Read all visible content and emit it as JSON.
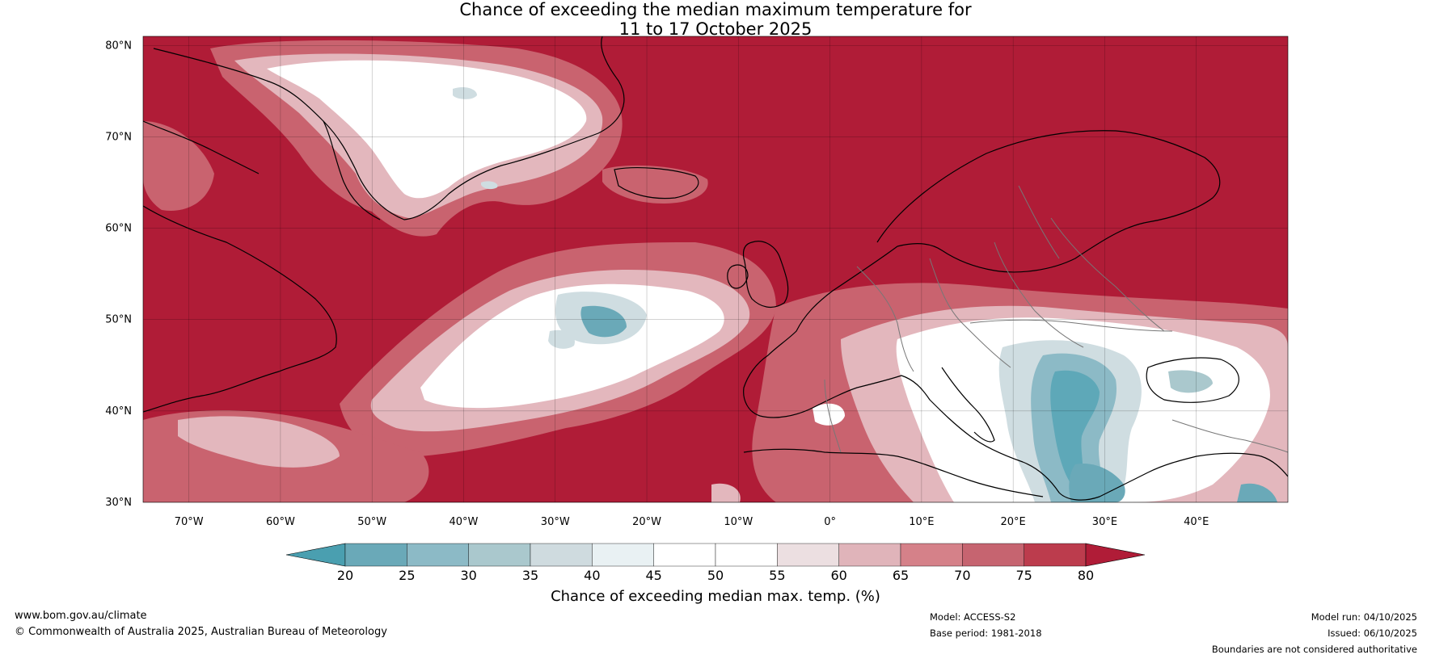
{
  "title": {
    "line1": "Chance of exceeding the median maximum temperature for",
    "line2": "11 to 17 October 2025"
  },
  "map": {
    "lat_labels": [
      "80°N",
      "70°N",
      "60°N",
      "50°N",
      "40°N",
      "30°N"
    ],
    "lon_labels": [
      "70°W",
      "60°W",
      "50°W",
      "40°W",
      "30°W",
      "20°W",
      "10°W",
      "0°",
      "10°E",
      "20°E",
      "30°E",
      "40°E"
    ],
    "lat_range": [
      30,
      81
    ],
    "lon_range": [
      -75,
      50
    ],
    "colors": {
      "high": "#b01c37",
      "above": "#c9636f",
      "mild_above": "#e3b7bd",
      "neutral": "#ffffff",
      "mild_below": "#cfdde1",
      "below": "#5ea8b8",
      "coast": "#000000",
      "border": "#777777"
    }
  },
  "colorbar": {
    "ticks": [
      "20",
      "25",
      "30",
      "35",
      "40",
      "45",
      "50",
      "55",
      "60",
      "65",
      "70",
      "75",
      "80"
    ],
    "colors": [
      "#4a9fb0",
      "#6aa9b8",
      "#8cbac6",
      "#aac8cd",
      "#cfdbdf",
      "#e9f1f3",
      "#ffffff",
      "#ffffff",
      "#ecdfe1",
      "#e0b4ba",
      "#d58189",
      "#c66470",
      "#bc3c4d",
      "#b01c37"
    ],
    "label": "Chance of exceeding median max. temp. (%)"
  },
  "footer": {
    "website": "www.bom.gov.au/climate",
    "copyright": "© Commonwealth of Australia 2025, Australian Bureau of Meteorology",
    "model": "Model: ACCESS-S2",
    "base_period": "Base period: 1981-2018",
    "model_run": "Model run: 04/10/2025",
    "issued": "Issued: 06/10/2025",
    "disclaimer": "Boundaries are not considered authoritative"
  }
}
